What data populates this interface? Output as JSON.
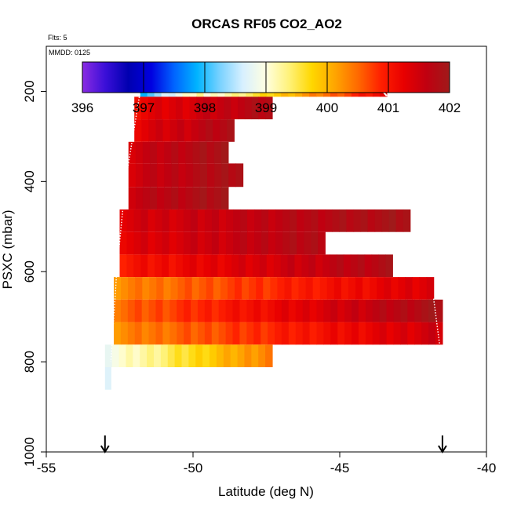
{
  "chart_data": {
    "type": "heatmap",
    "title": "ORCAS RF05 CO2_AO2",
    "flights_label": "Flts: 5",
    "date_label": "MMDD: 0125",
    "xlabel": "Latitude (deg N)",
    "ylabel": "PSXC (mbar)",
    "xlim": [
      -55,
      -40
    ],
    "ylim": [
      1000,
      100
    ],
    "x_ticks": [
      -55,
      -50,
      -45,
      -40
    ],
    "x_tick_labels": [
      "-55",
      "-50",
      "-45",
      "-40"
    ],
    "y_ticks": [
      200,
      400,
      600,
      800,
      1000
    ],
    "y_tick_labels": [
      "200",
      "400",
      "600",
      "800",
      "1000"
    ],
    "colorbar": {
      "min": 396,
      "max": 402,
      "ticks": [
        396,
        397,
        398,
        399,
        400,
        401,
        402
      ],
      "tick_labels": [
        "396",
        "397",
        "398",
        "399",
        "400",
        "401",
        "402"
      ],
      "colors": [
        "#8a2be2",
        "#3a0fd8",
        "#0000b0",
        "#0000e0",
        "#0064ff",
        "#00b4ff",
        "#7ad2ff",
        "#d8f0ff",
        "#ffffe0",
        "#fff27a",
        "#ffd700",
        "#ffa500",
        "#ff6a00",
        "#ff2000",
        "#e80000",
        "#c00010",
        "#a01a1a"
      ]
    },
    "series": [
      {
        "name": "band-1",
        "p_top": 190,
        "p_bot": 212,
        "lat_start": -51.8,
        "lat_end": -43.4,
        "v_start": 398.0,
        "v_end": 401.2,
        "v_mid": 398.9
      },
      {
        "name": "band-2",
        "p_top": 212,
        "p_bot": 262,
        "lat_start": -52.0,
        "lat_end": -47.3,
        "v_start": 401.2,
        "v_end": 401.8
      },
      {
        "name": "band-3",
        "p_top": 262,
        "p_bot": 312,
        "lat_start": -52.0,
        "lat_end": -48.6,
        "v_start": 401.3,
        "v_end": 401.8
      },
      {
        "name": "band-4",
        "p_top": 312,
        "p_bot": 360,
        "lat_start": -52.2,
        "lat_end": -48.8,
        "v_start": 401.5,
        "v_end": 401.9
      },
      {
        "name": "band-5",
        "p_top": 360,
        "p_bot": 412,
        "lat_start": -52.2,
        "lat_end": -48.3,
        "v_start": 401.5,
        "v_end": 401.9
      },
      {
        "name": "band-6",
        "p_top": 412,
        "p_bot": 462,
        "lat_start": -52.2,
        "lat_end": -48.8,
        "v_start": 401.6,
        "v_end": 401.9
      },
      {
        "name": "band-7",
        "p_top": 462,
        "p_bot": 512,
        "lat_start": -52.5,
        "lat_end": -42.6,
        "v_start": 401.4,
        "v_end": 401.9
      },
      {
        "name": "band-8",
        "p_top": 512,
        "p_bot": 562,
        "lat_start": -52.5,
        "lat_end": -45.5,
        "v_start": 401.3,
        "v_end": 401.8
      },
      {
        "name": "band-9",
        "p_top": 562,
        "p_bot": 612,
        "lat_start": -52.5,
        "lat_end": -43.2,
        "v_start": 401.0,
        "v_end": 401.8
      },
      {
        "name": "band-10",
        "p_top": 612,
        "p_bot": 662,
        "lat_start": -52.7,
        "lat_end": -41.8,
        "v_start": 400.3,
        "v_end": 401.4
      },
      {
        "name": "band-11",
        "p_top": 662,
        "p_bot": 712,
        "lat_start": -52.7,
        "lat_end": -41.5,
        "v_start": 400.5,
        "v_end": 401.9
      },
      {
        "name": "band-12",
        "p_top": 712,
        "p_bot": 762,
        "lat_start": -52.7,
        "lat_end": -41.5,
        "v_start": 400.3,
        "v_end": 401.5
      },
      {
        "name": "band-13",
        "p_top": 762,
        "p_bot": 812,
        "lat_start": -53.0,
        "lat_end": -47.3,
        "v_start": 398.9,
        "v_end": 400.4
      },
      {
        "name": "band-14",
        "p_top": 812,
        "p_bot": 862,
        "lat_start": -53.0,
        "lat_end": -52.8,
        "v_start": 398.8,
        "v_end": 398.8
      }
    ],
    "flight_tracks": [
      {
        "name": "track-outbound",
        "points": [
          [
            -51.8,
            200
          ],
          [
            -52.3,
            400
          ],
          [
            -52.6,
            600
          ],
          [
            -52.8,
            800
          ]
        ]
      },
      {
        "name": "track-return",
        "points": [
          [
            -41.8,
            660
          ],
          [
            -41.6,
            760
          ]
        ]
      },
      {
        "name": "track-top-1",
        "points": [
          [
            -51.5,
            195
          ],
          [
            -47.8,
            195
          ]
        ]
      },
      {
        "name": "track-top-2",
        "points": [
          [
            -44.6,
            195
          ],
          [
            -43.6,
            195
          ],
          [
            -43.4,
            210
          ]
        ]
      }
    ],
    "markers": [
      {
        "name": "arrow-left",
        "lat": -53.0
      },
      {
        "name": "arrow-right",
        "lat": -41.5
      }
    ]
  }
}
